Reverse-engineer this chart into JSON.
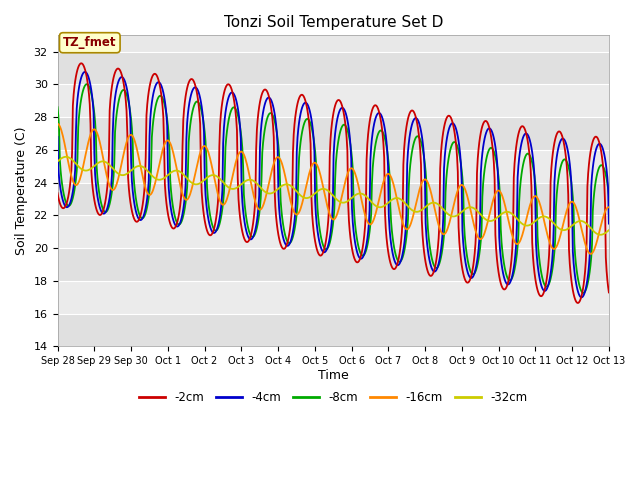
{
  "title": "Tonzi Soil Temperature Set D",
  "xlabel": "Time",
  "ylabel": "Soil Temperature (C)",
  "ylim": [
    14,
    33
  ],
  "yticks": [
    14,
    16,
    18,
    20,
    22,
    24,
    26,
    28,
    30,
    32
  ],
  "legend_labels": [
    "-2cm",
    "-4cm",
    "-8cm",
    "-16cm",
    "-32cm"
  ],
  "legend_colors": [
    "#cc0000",
    "#0000cc",
    "#00aa00",
    "#ff8800",
    "#cccc00"
  ],
  "annotation_text": "TZ_fmet",
  "annotation_bg": "#ffffcc",
  "annotation_fg": "#880000",
  "band_colors": [
    "#e0e0e0",
    "#ebebeb"
  ],
  "grid_color": "#ffffff",
  "plot_bg": "#e8e8e8"
}
